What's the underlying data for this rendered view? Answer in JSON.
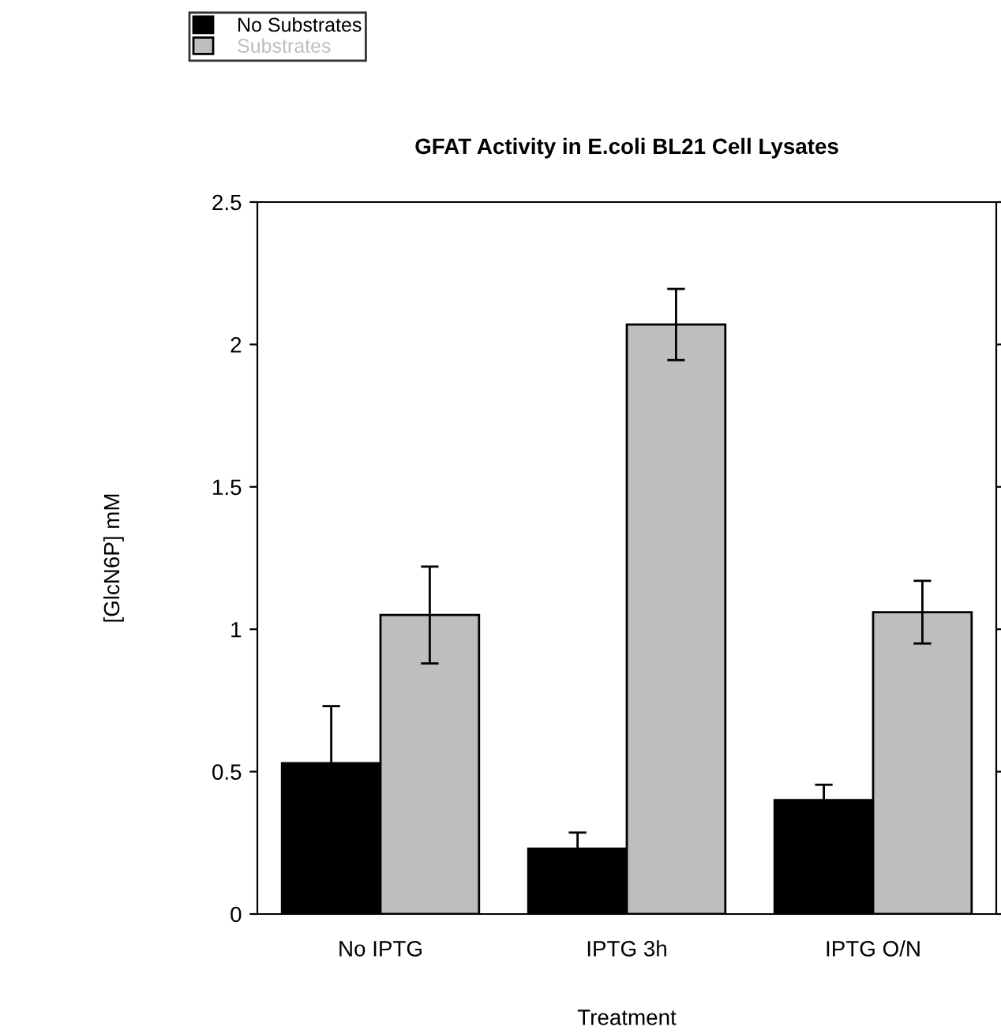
{
  "chart_data": {
    "type": "bar",
    "title": "GFAT Activity in E.coli BL21 Cell Lysates",
    "xlabel": "Treatment",
    "ylabel": "[GlcN6P] mM",
    "categories": [
      "No IPTG",
      "IPTG 3h",
      "IPTG O/N"
    ],
    "series": [
      {
        "name": "No Substrates",
        "color": "#000000",
        "values": [
          0.53,
          0.23,
          0.4
        ],
        "errors": [
          0.2,
          0.056,
          0.054
        ]
      },
      {
        "name": "Substrates",
        "color": "#bebebe",
        "values": [
          1.05,
          2.07,
          1.06
        ],
        "errors": [
          0.17,
          0.125,
          0.11
        ]
      }
    ],
    "ylim": [
      0,
      2.5
    ],
    "yticks": [
      0,
      0.5,
      1,
      1.5,
      2,
      2.5
    ],
    "grid": false,
    "legend": "top left"
  }
}
